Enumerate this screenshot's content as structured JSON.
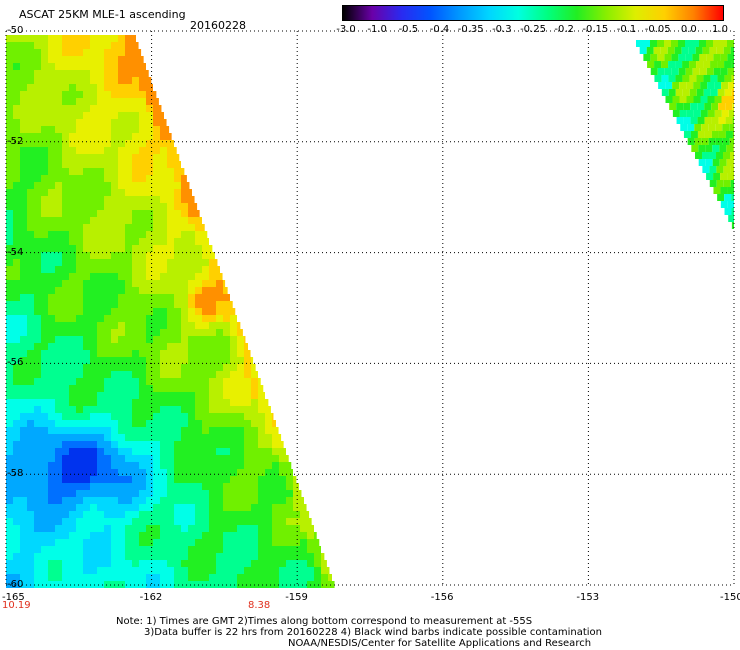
{
  "header": {
    "title": "ASCAT 25KM MLE-1 ascending",
    "date": "20160228"
  },
  "colorbar": {
    "ticks": [
      "-3.0",
      "-1.0",
      "-0.5",
      "-0.4",
      "-0.35",
      "-0.3",
      "-0.25",
      "-0.2",
      "-0.15",
      "-0.1",
      "-0.05",
      "0.0",
      "1.0"
    ],
    "colors": [
      "#000000",
      "#6a00a8",
      "#2a2af0",
      "#0055ff",
      "#0099ff",
      "#00d5ff",
      "#00ffe0",
      "#00ff80",
      "#22ee22",
      "#88ee00",
      "#ddee00",
      "#ffd000",
      "#ff8000",
      "#ff0000"
    ]
  },
  "map": {
    "lat_labels": [
      "-50",
      "-52",
      "-54",
      "-56",
      "-58",
      "-60"
    ],
    "lon_labels": [
      "-165",
      "-162",
      "-159",
      "-156",
      "-153",
      "-150"
    ],
    "time_labels": [
      "10.19",
      "8.38"
    ]
  },
  "notes": {
    "line1": "Note: 1) Times are GMT 2)Times along bottom correspond to measurement at -55S",
    "line2": "3)Data buffer is 22 hrs from 20160228 4) Black wind barbs indicate possible contamination",
    "line3": "NOAA/NESDIS/Center for Satellite Applications and Research"
  }
}
